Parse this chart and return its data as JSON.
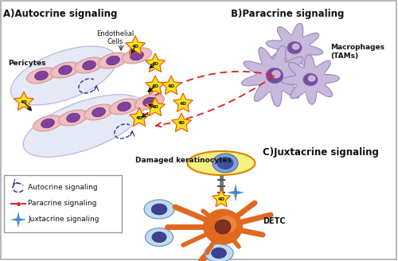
{
  "title_A": "A)Autocrine signaling",
  "title_B": "B)Paracrine signaling",
  "title_C": "C)Juxtacrine signaling",
  "label_pericytes": "Pericytes",
  "label_endothelial": "Endothelial\nCells",
  "label_macrophages": "Macrophages\n(TAMs)",
  "label_damaged": "Damaged keratinocytes",
  "label_DETC": "DETC",
  "label_4D": "4D",
  "legend_autocrine": "Autocrine signaling",
  "legend_paracrine": "Paracrine signaling",
  "legend_juxtacrine": "Juxtacrine signaling",
  "bg_color": "#ffffff",
  "cell_pink": "#f2bec0",
  "cell_pink_edge": "#c89898",
  "cell_nucleus": "#8040a0",
  "pericyte_fill": "#d0d8f0",
  "pericyte_edge": "#8888cc",
  "star_yellow": "#f8e020",
  "star_orange": "#e85000",
  "text_color": "#111111",
  "paracrine_color": "#dd2222",
  "mac_body": "#c8b8dc",
  "mac_edge": "#9988bb",
  "mac_nucleus": "#7050a0",
  "mac_nuc_inner": "#d0b0e0",
  "kc_yellow": "#f5f080",
  "kc_orange_edge": "#e08000",
  "kc_nucleus_outer": "#80a0d0",
  "kc_nucleus_inner": "#4050a0",
  "detc_body": "#e06820",
  "detc_body2": "#f09040",
  "detc_nucleus": "#803020",
  "small_cell_fill": "#c0ddf0",
  "small_cell_edge": "#6688bb",
  "small_nuc": "#404090",
  "juxt_star": "#4488cc",
  "legend_edge": "#999999",
  "border_color": "#aaaaaa",
  "autocrine_arrow": "#333399"
}
